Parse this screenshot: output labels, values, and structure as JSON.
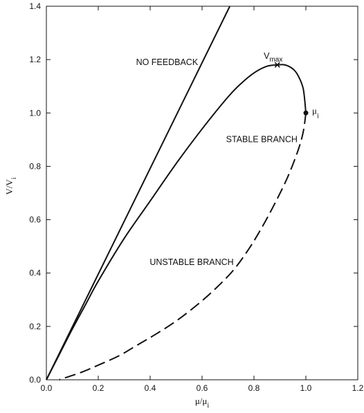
{
  "chart_data": {
    "type": "line",
    "xlabel": {
      "main": "μ/μ",
      "sub": "i"
    },
    "ylabel": {
      "main": "V/V",
      "sub": "i"
    },
    "xlim": [
      0,
      1.2
    ],
    "ylim": [
      0,
      1.4
    ],
    "x_ticks": [
      "0.0",
      "0.2",
      "0.4",
      "0.6",
      "0.8",
      "1.0",
      "1.2"
    ],
    "y_ticks": [
      "0.0",
      "0.2",
      "0.4",
      "0.6",
      "0.8",
      "1.0",
      "1.2",
      "1.4"
    ],
    "grid": false,
    "series": [
      {
        "label": "NO FEEDBACK",
        "style": "solid",
        "x": [
          0.0,
          0.707
        ],
        "y": [
          0.0,
          1.4
        ]
      },
      {
        "label": "STABLE BRANCH",
        "style": "solid",
        "x": [
          0.0,
          0.05,
          0.1,
          0.15,
          0.2,
          0.3,
          0.4,
          0.5,
          0.6,
          0.7,
          0.75,
          0.8,
          0.85,
          0.89,
          0.92,
          0.95,
          0.97,
          0.99,
          1.0
        ],
        "y": [
          0.0,
          0.095,
          0.19,
          0.28,
          0.37,
          0.53,
          0.67,
          0.81,
          0.94,
          1.06,
          1.11,
          1.15,
          1.175,
          1.18,
          1.18,
          1.165,
          1.14,
          1.09,
          1.0
        ]
      },
      {
        "label": "UNSTABLE BRANCH",
        "style": "dashed",
        "x": [
          1.0,
          0.99,
          0.97,
          0.93,
          0.88,
          0.83,
          0.78,
          0.72,
          0.65,
          0.58,
          0.5,
          0.42,
          0.35,
          0.28,
          0.2,
          0.14,
          0.08,
          0.05
        ],
        "y": [
          1.0,
          0.93,
          0.86,
          0.76,
          0.66,
          0.57,
          0.49,
          0.41,
          0.34,
          0.28,
          0.22,
          0.17,
          0.13,
          0.09,
          0.055,
          0.03,
          0.01,
          0.0
        ]
      }
    ],
    "markers": [
      {
        "name": "V",
        "sub": "max",
        "symbol": "x",
        "x": 0.89,
        "y": 1.18
      },
      {
        "name": "μ",
        "sub": "i",
        "symbol": "dot",
        "x": 1.0,
        "y": 1.0
      }
    ],
    "annotations": [
      {
        "text": "NO FEEDBACK",
        "x": 0.465,
        "y": 1.18
      },
      {
        "text": "STABLE BRANCH",
        "x": 0.83,
        "y": 0.89
      },
      {
        "text": "UNSTABLE BRANCH",
        "x": 0.56,
        "y": 0.43
      }
    ]
  }
}
